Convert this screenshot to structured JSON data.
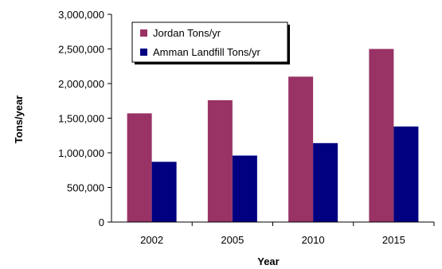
{
  "chart_data": {
    "type": "bar",
    "categories": [
      "2002",
      "2005",
      "2010",
      "2015"
    ],
    "series": [
      {
        "name": "Jordan Tons/yr",
        "values": [
          1570000,
          1760000,
          2100000,
          2500000
        ],
        "color": "#993366"
      },
      {
        "name": "Amman Landfill Tons/yr",
        "values": [
          870000,
          960000,
          1140000,
          1380000
        ],
        "color": "#000080"
      }
    ],
    "title": "",
    "xlabel": "Year",
    "ylabel": "Tons/year",
    "ylim": [
      0,
      3000000
    ],
    "yticks": [
      0,
      500000,
      1000000,
      1500000,
      2000000,
      2500000,
      3000000
    ],
    "ytick_labels": [
      "0",
      "500,000",
      "1,000,000",
      "1,500,000",
      "2,000,000",
      "2,500,000",
      "3,000,000"
    ],
    "grid": false,
    "legend": "top-left"
  }
}
